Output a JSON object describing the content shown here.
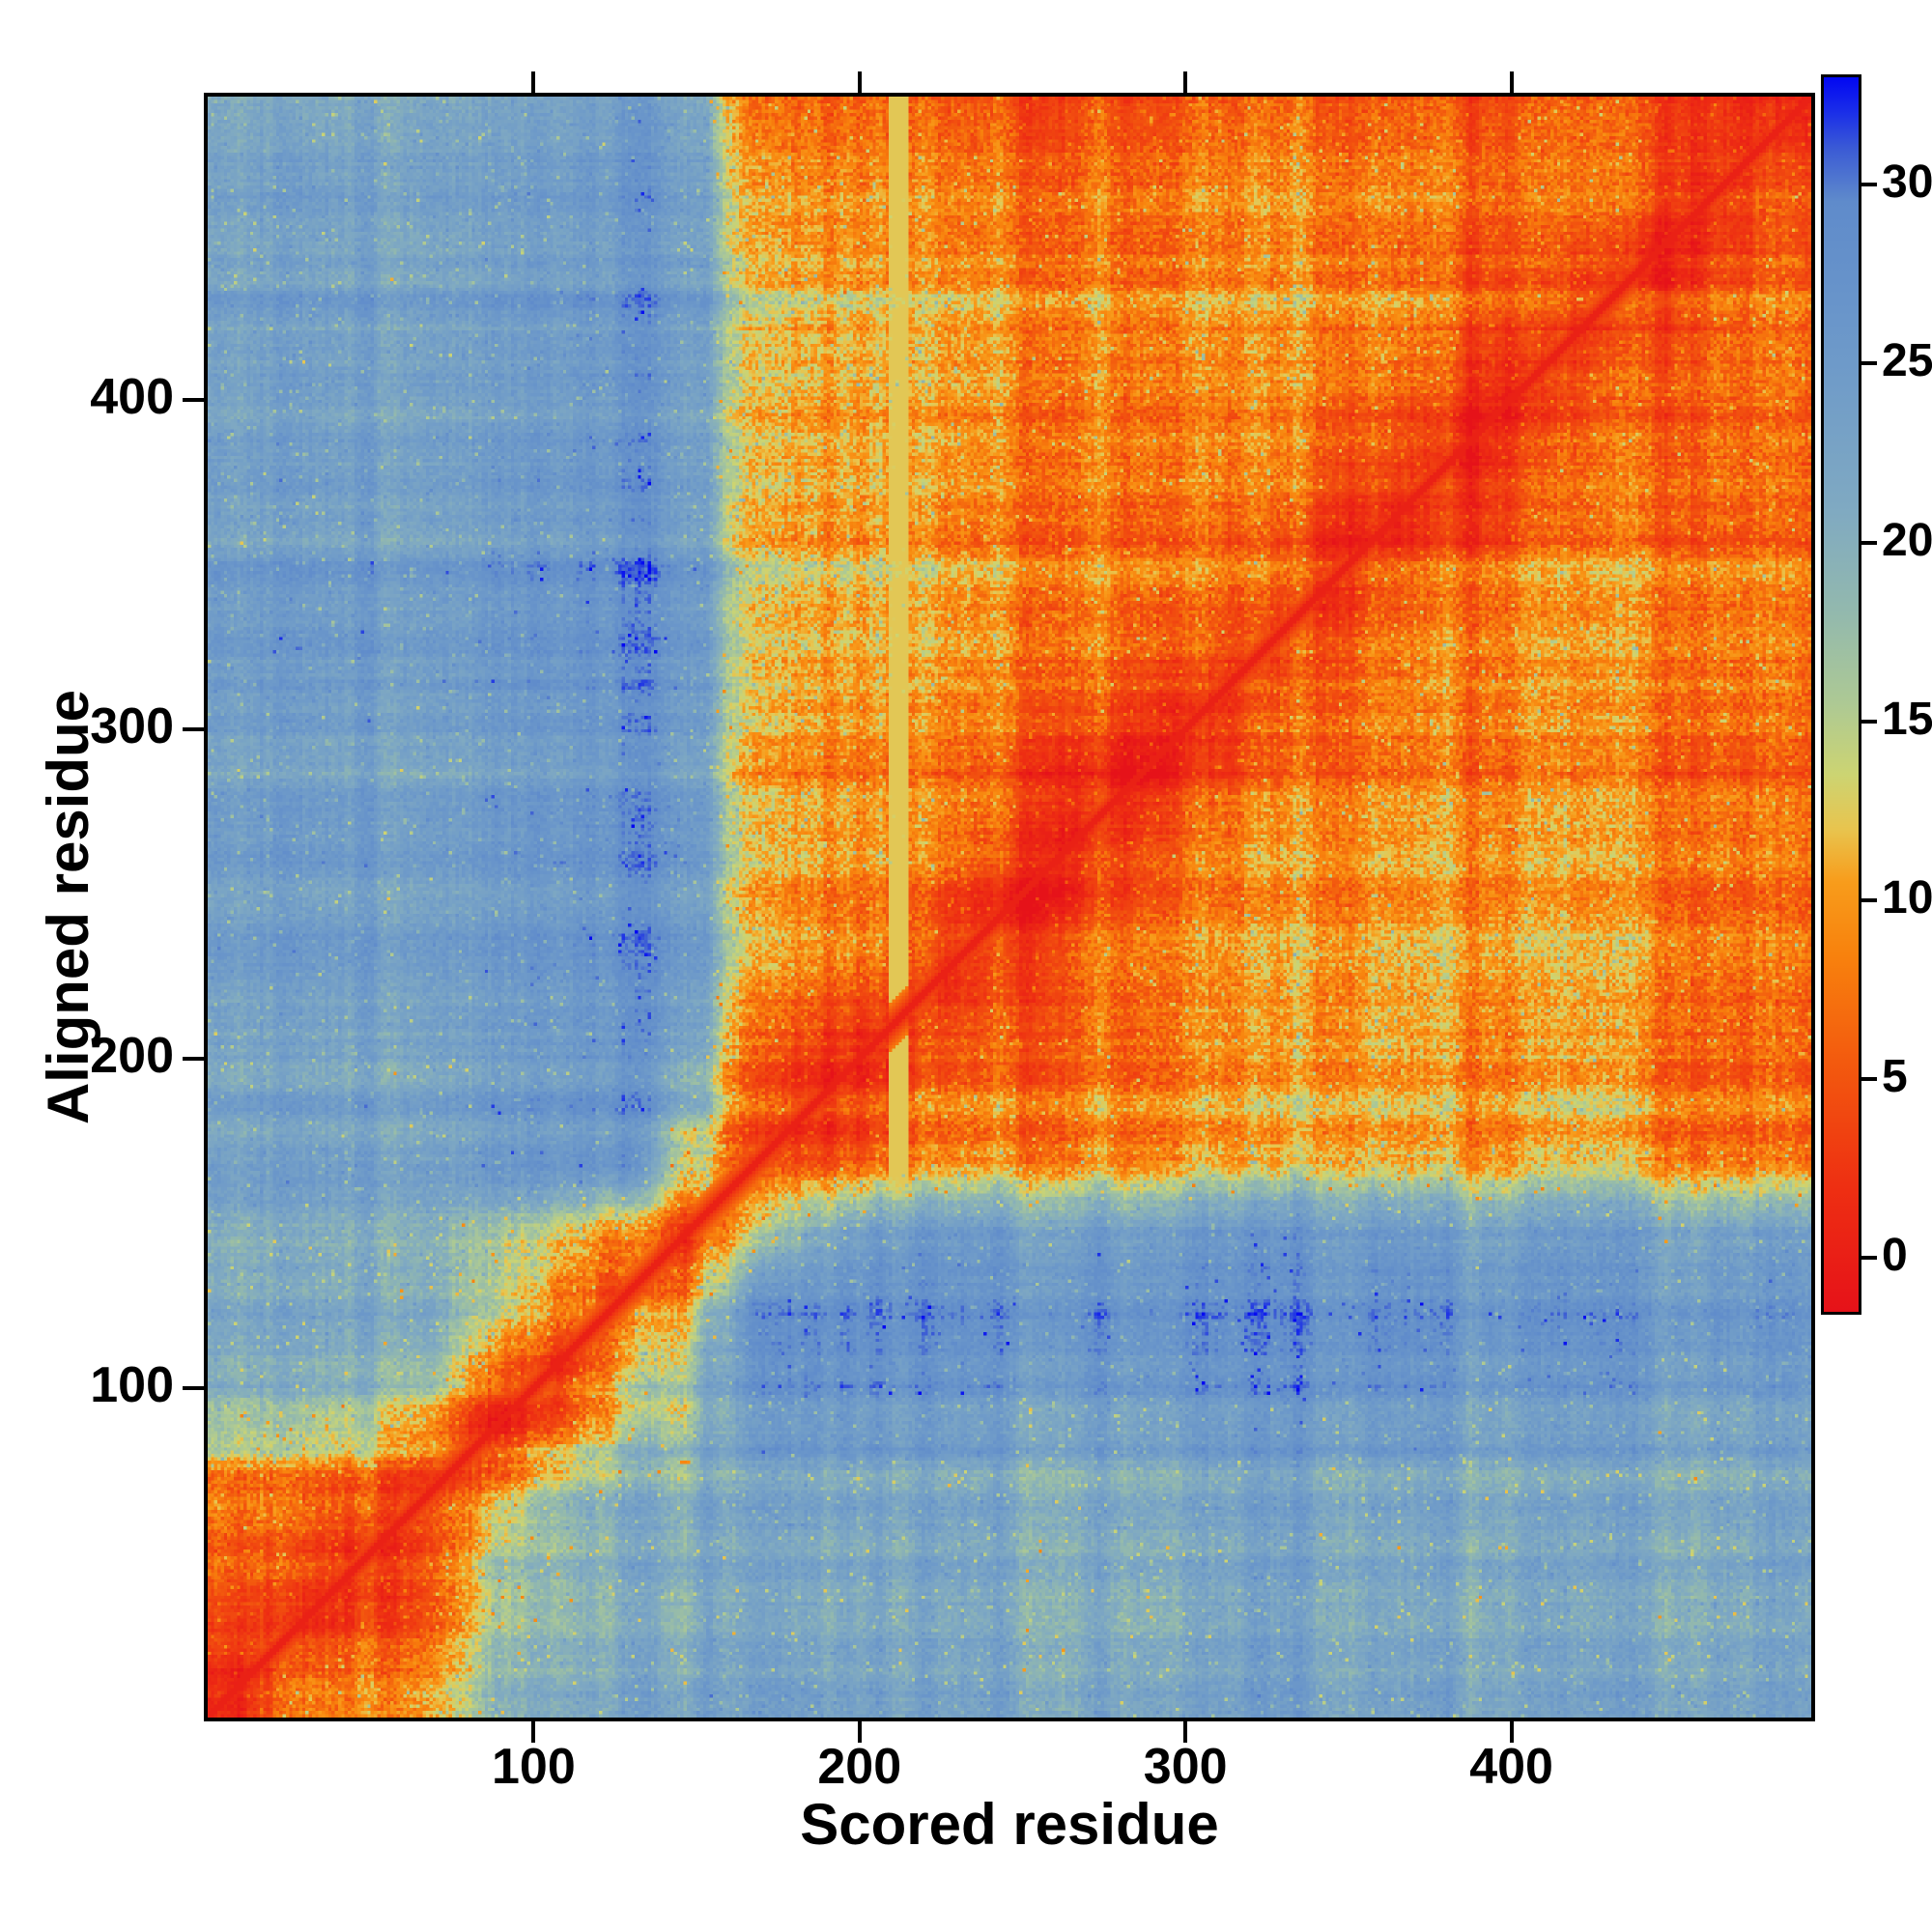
{
  "figure": {
    "background": "#ffffff",
    "axes_color": "#000000",
    "text_color": "#000000"
  },
  "chart_data": {
    "type": "heatmap",
    "xlabel": "Scored residue",
    "ylabel": "Aligned residue",
    "x_ticks": [
      100,
      200,
      300,
      400
    ],
    "y_ticks": [
      100,
      200,
      300,
      400
    ],
    "n_residues": 492,
    "x_range": [
      1,
      492
    ],
    "y_range": [
      1,
      492
    ],
    "grid": false,
    "diagonal_value": 0,
    "pale_column_residue": 212,
    "colorbar": {
      "side": "right",
      "ticks": [
        0,
        5,
        10,
        15,
        20,
        25,
        30
      ],
      "vmin": -1.5,
      "vmax": 33,
      "stops": [
        [
          -1.5,
          "#e61219"
        ],
        [
          2,
          "#ee2f12"
        ],
        [
          5.5,
          "#f35a0e"
        ],
        [
          8.5,
          "#f8820d"
        ],
        [
          10.5,
          "#f89c1b"
        ],
        [
          12,
          "#e8c44e"
        ],
        [
          13.5,
          "#ccd472"
        ],
        [
          15.5,
          "#adc994"
        ],
        [
          18,
          "#93b9ad"
        ],
        [
          21,
          "#7fa9c2"
        ],
        [
          25,
          "#6e9ac9"
        ],
        [
          29.5,
          "#5f8bcb"
        ],
        [
          31,
          "#3b5bd5"
        ],
        [
          32,
          "#1b2fe8"
        ],
        [
          33,
          "#0207f2"
        ]
      ]
    },
    "matrix_bins": 25,
    "matrix_order": "rows bottom-to-top, cols left-to-right, ~19.7 residues per bin",
    "matrix": [
      [
        1,
        6,
        7,
        8,
        20,
        21,
        21,
        21,
        22,
        22,
        22,
        22,
        23,
        22,
        23,
        22,
        23,
        22,
        22,
        23,
        22,
        22,
        23,
        22,
        22
      ],
      [
        5,
        1,
        3,
        4,
        18,
        20,
        20,
        20,
        22,
        21,
        22,
        22,
        23,
        22,
        22,
        22,
        23,
        22,
        22,
        22,
        23,
        21,
        22,
        22,
        22
      ],
      [
        6,
        3,
        1,
        3,
        17,
        19,
        20,
        20,
        21,
        21,
        21,
        22,
        22,
        22,
        22,
        21,
        22,
        22,
        21,
        22,
        22,
        21,
        22,
        21,
        22
      ],
      [
        7,
        4,
        3,
        1,
        10,
        18,
        19,
        19,
        21,
        21,
        21,
        21,
        22,
        21,
        22,
        21,
        22,
        21,
        21,
        22,
        21,
        21,
        22,
        21,
        21
      ],
      [
        19,
        17,
        16,
        10,
        1,
        8,
        15,
        18,
        25,
        26,
        26,
        26,
        26,
        26,
        26,
        26,
        26,
        26,
        26,
        26,
        25,
        25,
        25,
        24,
        24
      ],
      [
        20,
        19,
        18,
        17,
        8,
        1,
        8,
        15,
        25,
        26,
        26,
        26,
        26,
        26,
        26,
        26,
        26,
        26,
        26,
        25,
        25,
        25,
        25,
        24,
        24
      ],
      [
        20,
        19,
        19,
        18,
        15,
        8,
        1,
        7,
        24,
        25,
        26,
        26,
        26,
        26,
        26,
        26,
        26,
        25,
        26,
        25,
        25,
        25,
        24,
        24,
        24
      ],
      [
        20,
        19,
        19,
        18,
        17,
        14,
        7,
        1,
        12,
        20,
        24,
        25,
        25,
        25,
        25,
        25,
        25,
        25,
        25,
        24,
        24,
        24,
        24,
        23,
        23
      ],
      [
        23,
        22,
        22,
        21,
        26,
        26,
        25,
        12,
        1,
        3,
        5,
        8,
        9,
        9,
        9,
        10,
        9,
        11,
        10,
        10,
        10,
        11,
        9,
        7,
        6
      ],
      [
        23,
        22,
        22,
        21,
        26,
        26,
        26,
        20,
        3,
        1,
        3,
        7,
        8,
        9,
        9,
        9,
        9,
        11,
        10,
        10,
        10,
        11,
        9,
        7,
        6
      ],
      [
        23,
        22,
        22,
        22,
        26,
        26,
        26,
        24,
        5,
        3,
        1,
        5,
        7,
        8,
        8,
        9,
        9,
        10,
        11,
        10,
        10,
        10,
        9,
        7,
        6
      ],
      [
        24,
        23,
        23,
        22,
        26,
        26,
        26,
        25,
        8,
        7,
        5,
        1,
        4,
        7,
        8,
        8,
        9,
        9,
        10,
        11,
        10,
        10,
        9,
        7,
        6
      ],
      [
        24,
        23,
        23,
        22,
        26,
        26,
        26,
        25,
        9,
        8,
        7,
        4,
        1,
        4,
        7,
        8,
        8,
        9,
        9,
        10,
        11,
        9,
        9,
        7,
        6
      ],
      [
        24,
        23,
        23,
        22,
        26,
        26,
        26,
        25,
        9,
        9,
        8,
        7,
        4,
        1,
        4,
        6,
        8,
        8,
        9,
        9,
        9,
        9,
        8,
        7,
        6
      ],
      [
        24,
        23,
        23,
        22,
        26,
        26,
        26,
        25,
        9,
        9,
        8,
        8,
        7,
        4,
        1,
        4,
        6,
        8,
        8,
        9,
        9,
        9,
        8,
        7,
        6
      ],
      [
        24,
        23,
        23,
        22,
        26,
        26,
        26,
        25,
        10,
        9,
        9,
        8,
        8,
        6,
        4,
        1,
        4,
        6,
        8,
        8,
        9,
        8,
        8,
        7,
        6
      ],
      [
        24,
        23,
        23,
        22,
        26,
        26,
        26,
        25,
        9,
        9,
        9,
        9,
        8,
        8,
        6,
        4,
        1,
        4,
        6,
        8,
        8,
        8,
        8,
        7,
        6
      ],
      [
        24,
        23,
        23,
        22,
        26,
        26,
        26,
        25,
        10,
        10,
        10,
        9,
        9,
        8,
        8,
        6,
        4,
        1,
        4,
        6,
        8,
        8,
        8,
        7,
        6
      ],
      [
        24,
        23,
        23,
        22,
        26,
        26,
        26,
        25,
        10,
        10,
        10,
        9,
        9,
        9,
        8,
        8,
        6,
        4,
        1,
        4,
        6,
        7,
        8,
        7,
        6
      ],
      [
        24,
        23,
        23,
        22,
        26,
        26,
        26,
        24,
        10,
        10,
        10,
        10,
        9,
        9,
        9,
        8,
        8,
        6,
        4,
        1,
        4,
        6,
        7,
        7,
        6
      ],
      [
        23,
        23,
        22,
        22,
        25,
        25,
        25,
        24,
        10,
        10,
        10,
        10,
        10,
        9,
        9,
        8,
        8,
        8,
        6,
        4,
        1,
        4,
        6,
        7,
        6
      ],
      [
        23,
        22,
        22,
        21,
        25,
        25,
        25,
        24,
        10,
        10,
        10,
        10,
        10,
        9,
        9,
        9,
        8,
        8,
        8,
        6,
        4,
        1,
        4,
        6,
        6
      ],
      [
        23,
        22,
        22,
        21,
        25,
        25,
        24,
        24,
        10,
        10,
        9,
        9,
        9,
        9,
        8,
        8,
        8,
        8,
        7,
        6,
        6,
        4,
        1,
        4,
        5
      ],
      [
        22,
        22,
        21,
        21,
        24,
        24,
        24,
        23,
        7,
        7,
        7,
        7,
        7,
        7,
        7,
        7,
        7,
        7,
        7,
        7,
        6,
        6,
        4,
        1,
        3
      ],
      [
        22,
        21,
        21,
        21,
        24,
        24,
        24,
        23,
        6,
        6,
        6,
        6,
        6,
        6,
        6,
        6,
        6,
        6,
        6,
        6,
        6,
        6,
        5,
        3,
        1
      ]
    ]
  }
}
